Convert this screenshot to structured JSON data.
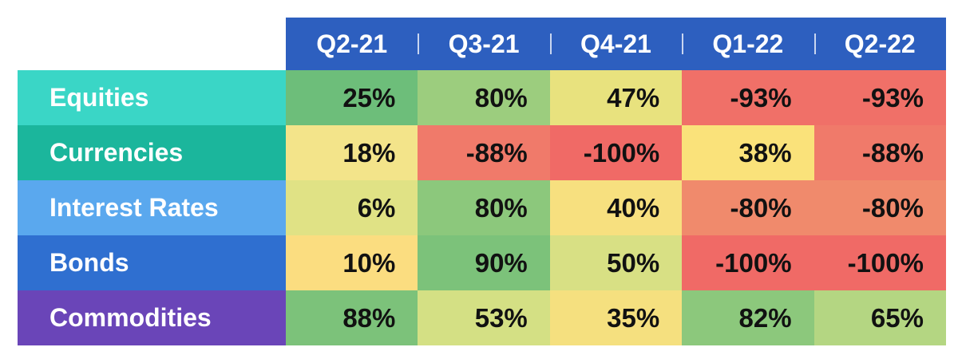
{
  "table": {
    "header": [
      "Q2-21",
      "Q3-21",
      "Q4-21",
      "Q1-22",
      "Q2-22"
    ],
    "rows": [
      {
        "label": "Equities",
        "color": "#3ad6c6",
        "cells": [
          "25%",
          "80%",
          "47%",
          "-93%",
          "-93%"
        ],
        "cell_colors": [
          "#6dbe7a",
          "#9ccd7e",
          "#e8e27e",
          "#f07068",
          "#f07068"
        ]
      },
      {
        "label": "Currencies",
        "color": "#1bb69c",
        "cells": [
          "18%",
          "-88%",
          "-100%",
          "38%",
          "-88%"
        ],
        "cell_colors": [
          "#f3e48a",
          "#f07a6a",
          "#f06a66",
          "#fae27a",
          "#f07a6a"
        ]
      },
      {
        "label": "Interest Rates",
        "color": "#5aa8ee",
        "cells": [
          "6%",
          "80%",
          "40%",
          "-80%",
          "-80%"
        ],
        "cell_colors": [
          "#e0e285",
          "#8cc87c",
          "#f7e07f",
          "#f08a6c",
          "#f08a6c"
        ]
      },
      {
        "label": "Bonds",
        "color": "#2f6fd0",
        "cells": [
          "10%",
          "90%",
          "50%",
          "-100%",
          "-100%"
        ],
        "cell_colors": [
          "#fbdd80",
          "#7cc27a",
          "#d8e084",
          "#f06a66",
          "#f06a66"
        ]
      },
      {
        "label": "Commodities",
        "color": "#6a45b8",
        "cells": [
          "88%",
          "53%",
          "35%",
          "82%",
          "65%"
        ],
        "cell_colors": [
          "#7cc27a",
          "#d4e084",
          "#f5e07f",
          "#8cc87c",
          "#b4d682"
        ]
      }
    ]
  }
}
